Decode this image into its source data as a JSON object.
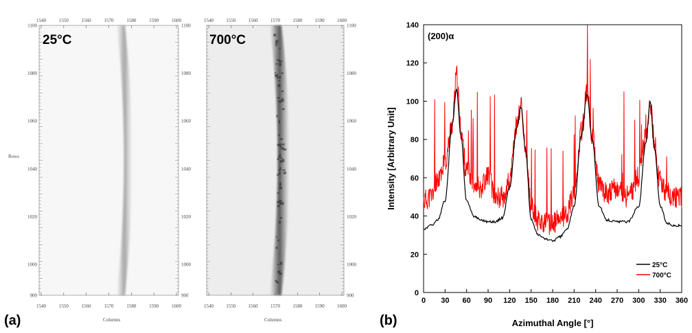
{
  "panel_a": {
    "label": "(a)",
    "x_axis_label": "Columns",
    "y_axis_label": "Rows",
    "x_ticks": [
      1540,
      1550,
      1560,
      1570,
      1580,
      1590,
      1600
    ],
    "y_ticks": [
      900,
      1000,
      1020,
      1040,
      1060,
      1080,
      1100
    ],
    "images": [
      {
        "name": "25°C",
        "temperature_label": "25°C"
      },
      {
        "name": "700°C",
        "temperature_label": "700°C"
      }
    ]
  },
  "panel_b": {
    "label": "(b)"
  },
  "chart_data": [
    {
      "type": "line",
      "title": "(200)α",
      "xlabel": "Azimuthal Angle  [°]",
      "ylabel": "Intensity  [Arbitrary Unit]",
      "xlim": [
        0,
        360
      ],
      "ylim": [
        0,
        140
      ],
      "x_ticks": [
        0,
        30,
        60,
        90,
        120,
        150,
        180,
        210,
        240,
        270,
        300,
        330,
        360
      ],
      "y_ticks": [
        0,
        20,
        40,
        60,
        80,
        100,
        120,
        140
      ],
      "grid": false,
      "legend": "bottom-right",
      "series": [
        {
          "name": "25°C",
          "color": "#000000",
          "x": [
            0,
            10,
            20,
            30,
            40,
            46,
            52,
            60,
            70,
            80,
            90,
            100,
            110,
            120,
            130,
            136,
            142,
            150,
            160,
            170,
            180,
            190,
            200,
            210,
            220,
            228,
            235,
            245,
            255,
            270,
            285,
            300,
            310,
            316,
            322,
            330,
            340,
            350,
            360
          ],
          "y": [
            33,
            35,
            38,
            48,
            88,
            106,
            82,
            48,
            40,
            38,
            37,
            37,
            39,
            55,
            86,
            97,
            75,
            38,
            30,
            28,
            27,
            29,
            33,
            45,
            82,
            104,
            80,
            45,
            38,
            37,
            37,
            45,
            78,
            100,
            75,
            45,
            36,
            35,
            35
          ]
        },
        {
          "name": "700°C",
          "color": "#ff0000",
          "x": [
            0,
            10,
            20,
            30,
            40,
            46,
            52,
            60,
            70,
            80,
            90,
            100,
            110,
            120,
            130,
            136,
            142,
            150,
            160,
            170,
            180,
            190,
            200,
            210,
            220,
            228,
            235,
            245,
            255,
            270,
            285,
            300,
            310,
            316,
            322,
            330,
            340,
            350,
            360
          ],
          "y": [
            48,
            50,
            60,
            68,
            88,
            113,
            85,
            63,
            58,
            55,
            62,
            50,
            50,
            58,
            88,
            98,
            75,
            45,
            38,
            36,
            36,
            38,
            42,
            52,
            84,
            104,
            82,
            56,
            52,
            54,
            50,
            60,
            82,
            100,
            78,
            58,
            52,
            50,
            50
          ]
        }
      ]
    }
  ]
}
